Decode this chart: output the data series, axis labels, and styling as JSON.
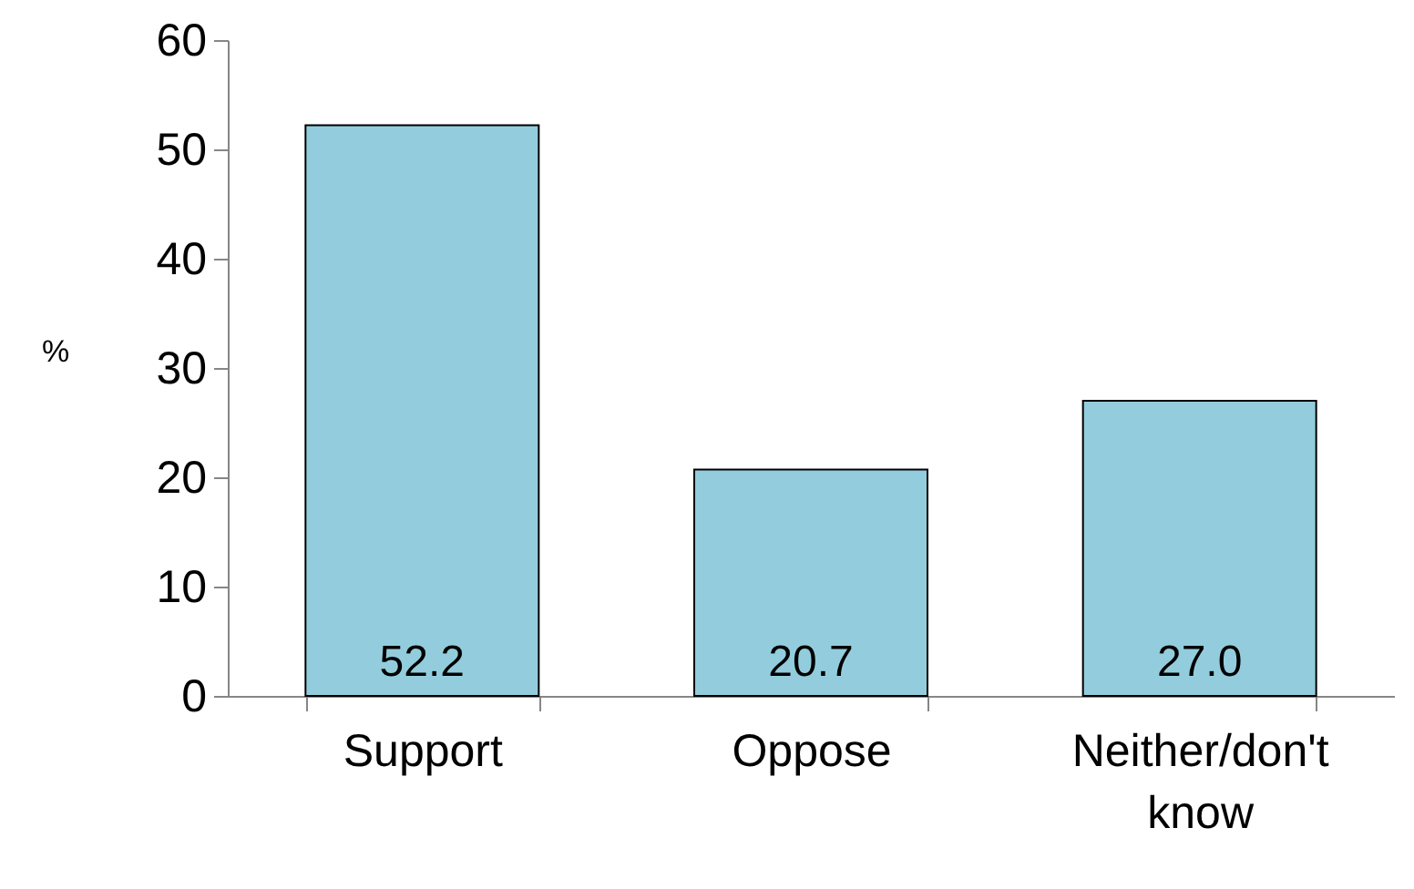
{
  "chart_data": {
    "type": "bar",
    "ylabel": "%",
    "categories": [
      "Support",
      "Oppose",
      "Neither/don't know"
    ],
    "values": [
      52.2,
      20.7,
      27.0
    ],
    "color": "#93cddd",
    "ylim": [
      0,
      60
    ],
    "yticks": [
      0,
      10,
      20,
      30,
      40,
      50,
      60
    ],
    "value_labels": [
      "52.2",
      "20.7",
      "27.0"
    ],
    "grid": false
  }
}
